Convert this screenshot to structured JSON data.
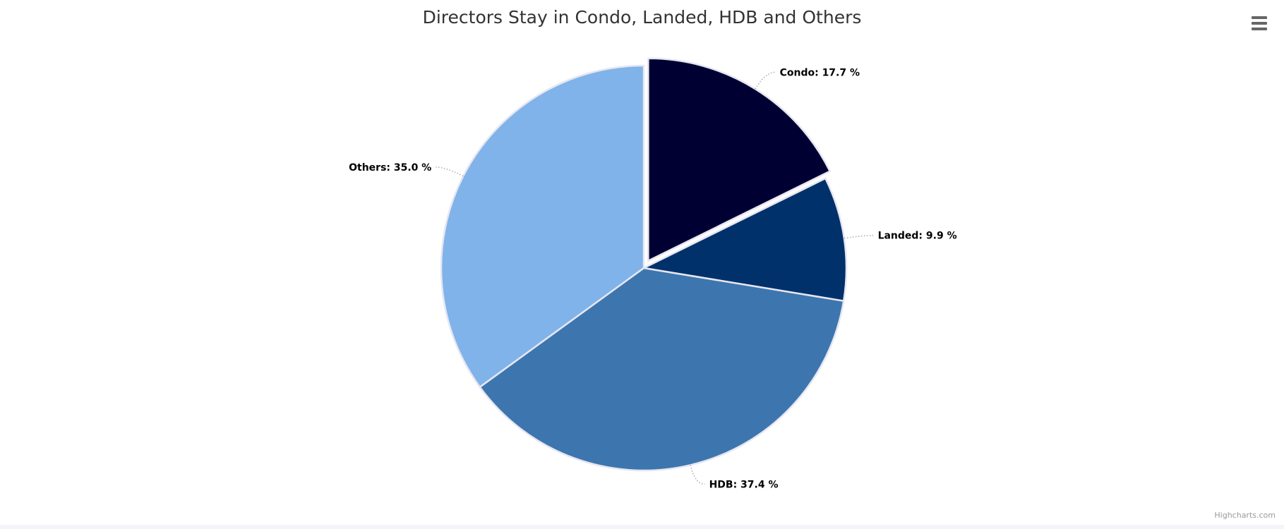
{
  "header": {
    "menu_icon": "hamburger-menu-icon"
  },
  "credits": "Highcharts.com",
  "chart_data": {
    "type": "pie",
    "title": "Directors Stay in Condo, Landed, HDB and Others",
    "slices": [
      {
        "name": "Condo",
        "value": 17.7,
        "label": "Condo: 17.7 %",
        "color": "#000033",
        "sliced": true
      },
      {
        "name": "Landed",
        "value": 9.9,
        "label": "Landed: 9.9 %",
        "color": "#00316a",
        "sliced": false
      },
      {
        "name": "HDB",
        "value": 37.4,
        "label": "HDB: 37.4 %",
        "color": "#3d76ae",
        "sliced": false
      },
      {
        "name": "Others",
        "value": 35.0,
        "label": "Others: 35.0 %",
        "color": "#7fb3ea",
        "sliced": false
      }
    ],
    "start_angle_deg": 0,
    "legend": "none",
    "data_labels": "outside-with-connectors"
  }
}
